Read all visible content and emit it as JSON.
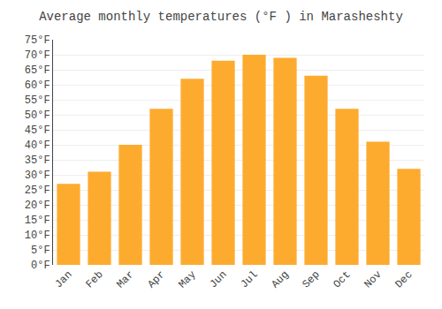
{
  "chart_data": {
    "type": "bar",
    "title": "Average monthly temperatures (°F ) in Marasheshty",
    "categories": [
      "Jan",
      "Feb",
      "Mar",
      "Apr",
      "May",
      "Jun",
      "Jul",
      "Aug",
      "Sep",
      "Oct",
      "Nov",
      "Dec"
    ],
    "values": [
      27,
      31,
      40,
      52,
      62,
      68,
      70,
      69,
      63,
      52,
      41,
      32
    ],
    "color": "#FDAB2F",
    "ylim": [
      0,
      75
    ],
    "yticks": [
      {
        "value": 0,
        "label": "0°F"
      },
      {
        "value": 5,
        "label": "5°F"
      },
      {
        "value": 10,
        "label": "10°F"
      },
      {
        "value": 15,
        "label": "15°F"
      },
      {
        "value": 20,
        "label": "20°F"
      },
      {
        "value": 25,
        "label": "25°F"
      },
      {
        "value": 30,
        "label": "30°F"
      },
      {
        "value": 35,
        "label": "35°F"
      },
      {
        "value": 40,
        "label": "40°F"
      },
      {
        "value": 45,
        "label": "45°F"
      },
      {
        "value": 50,
        "label": "50°F"
      },
      {
        "value": 55,
        "label": "55°F"
      },
      {
        "value": 60,
        "label": "60°F"
      },
      {
        "value": 65,
        "label": "65°F"
      },
      {
        "value": 70,
        "label": "70°F"
      },
      {
        "value": 75,
        "label": "75°F"
      }
    ],
    "grid": true
  }
}
